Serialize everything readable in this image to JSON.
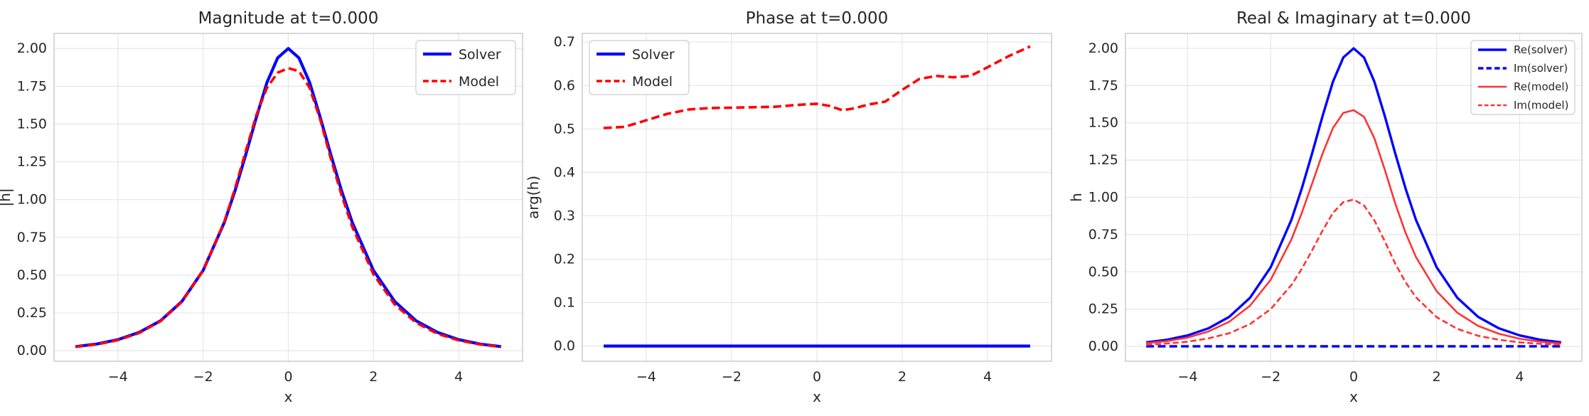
{
  "chart_data": [
    {
      "type": "line",
      "title": "Magnitude at t=0.000",
      "xlabel": "x",
      "ylabel": "|h|",
      "xlim": [
        -5.5,
        5.5
      ],
      "ylim": [
        -0.07,
        2.1
      ],
      "xticks": [
        -4,
        -2,
        0,
        2,
        4
      ],
      "xtick_labels": [
        "−4",
        "−2",
        "0",
        "2",
        "4"
      ],
      "yticks": [
        0,
        0.25,
        0.5,
        0.75,
        1.0,
        1.25,
        1.5,
        1.75,
        2.0
      ],
      "ytick_labels": [
        "0.00",
        "0.25",
        "0.50",
        "0.75",
        "1.00",
        "1.25",
        "1.50",
        "1.75",
        "2.00"
      ],
      "grid": true,
      "legend": "top-right",
      "x": [
        -5,
        -4.5,
        -4,
        -3.5,
        -3,
        -2.5,
        -2,
        -1.5,
        -1.25,
        -1,
        -0.75,
        -0.5,
        -0.25,
        0,
        0.25,
        0.5,
        0.75,
        1,
        1.25,
        1.5,
        2,
        2.5,
        3,
        3.5,
        4,
        4.5,
        5
      ],
      "series": [
        {
          "name": "Solver",
          "color": "#0000ff",
          "style": "solid",
          "width": 4.2,
          "values": [
            0.027,
            0.044,
            0.073,
            0.121,
            0.198,
            0.325,
            0.531,
            0.85,
            1.059,
            1.296,
            1.545,
            1.775,
            1.938,
            2.0,
            1.938,
            1.775,
            1.545,
            1.296,
            1.059,
            0.85,
            0.531,
            0.325,
            0.198,
            0.121,
            0.073,
            0.044,
            0.027
          ]
        },
        {
          "name": "Model",
          "color": "#ff0000",
          "style": "dashed",
          "width": 3.6,
          "values": [
            0.025,
            0.041,
            0.07,
            0.117,
            0.195,
            0.322,
            0.53,
            0.855,
            1.075,
            1.32,
            1.56,
            1.74,
            1.84,
            1.87,
            1.85,
            1.74,
            1.53,
            1.27,
            1.03,
            0.82,
            0.505,
            0.305,
            0.185,
            0.112,
            0.068,
            0.041,
            0.025
          ]
        }
      ]
    },
    {
      "type": "line",
      "title": "Phase at t=0.000",
      "xlabel": "x",
      "ylabel": "arg(h)",
      "xlim": [
        -5.5,
        5.5
      ],
      "ylim": [
        -0.035,
        0.72
      ],
      "xticks": [
        -4,
        -2,
        0,
        2,
        4
      ],
      "xtick_labels": [
        "−4",
        "−2",
        "0",
        "2",
        "4"
      ],
      "yticks": [
        0,
        0.1,
        0.2,
        0.3,
        0.4,
        0.5,
        0.6,
        0.7
      ],
      "ytick_labels": [
        "0.0",
        "0.1",
        "0.2",
        "0.3",
        "0.4",
        "0.5",
        "0.6",
        "0.7"
      ],
      "grid": true,
      "legend": "top-left",
      "x": [
        -5,
        -4.5,
        -4,
        -3.5,
        -3,
        -2.5,
        -2,
        -1.5,
        -1,
        -0.5,
        0,
        0.3,
        0.6,
        0.9,
        1.2,
        1.6,
        2,
        2.4,
        2.8,
        3.2,
        3.6,
        4,
        4.5,
        5
      ],
      "series": [
        {
          "name": "Solver",
          "color": "#0000ff",
          "style": "solid",
          "width": 4.2,
          "values": [
            0,
            0,
            0,
            0,
            0,
            0,
            0,
            0,
            0,
            0,
            0,
            0,
            0,
            0,
            0,
            0,
            0,
            0,
            0,
            0,
            0,
            0,
            0,
            0
          ]
        },
        {
          "name": "Model",
          "color": "#ff0000",
          "style": "dashed",
          "width": 3.6,
          "values": [
            0.502,
            0.505,
            0.52,
            0.535,
            0.545,
            0.548,
            0.549,
            0.55,
            0.551,
            0.555,
            0.558,
            0.553,
            0.543,
            0.548,
            0.556,
            0.563,
            0.59,
            0.615,
            0.622,
            0.619,
            0.622,
            0.642,
            0.668,
            0.69
          ]
        }
      ]
    },
    {
      "type": "line",
      "title": "Real & Imaginary at t=0.000",
      "xlabel": "x",
      "ylabel": "h",
      "xlim": [
        -5.5,
        5.5
      ],
      "ylim": [
        -0.1,
        2.1
      ],
      "xticks": [
        -4,
        -2,
        0,
        2,
        4
      ],
      "xtick_labels": [
        "−4",
        "−2",
        "0",
        "2",
        "4"
      ],
      "yticks": [
        0,
        0.25,
        0.5,
        0.75,
        1.0,
        1.25,
        1.5,
        1.75,
        2.0
      ],
      "ytick_labels": [
        "0.00",
        "0.25",
        "0.50",
        "0.75",
        "1.00",
        "1.25",
        "1.50",
        "1.75",
        "2.00"
      ],
      "grid": true,
      "legend": "top-right",
      "x": [
        -5,
        -4.5,
        -4,
        -3.5,
        -3,
        -2.5,
        -2,
        -1.5,
        -1.25,
        -1,
        -0.75,
        -0.5,
        -0.25,
        0,
        0.25,
        0.5,
        0.75,
        1,
        1.25,
        1.5,
        2,
        2.5,
        3,
        3.5,
        4,
        4.5,
        5
      ],
      "series": [
        {
          "name": "Re(solver)",
          "color": "#0000ff",
          "style": "solid",
          "width": 3.4,
          "values": [
            0.027,
            0.044,
            0.073,
            0.121,
            0.198,
            0.325,
            0.531,
            0.85,
            1.059,
            1.296,
            1.545,
            1.775,
            1.938,
            2.0,
            1.938,
            1.775,
            1.545,
            1.296,
            1.059,
            0.85,
            0.531,
            0.325,
            0.198,
            0.121,
            0.073,
            0.044,
            0.027
          ]
        },
        {
          "name": "Im(solver)",
          "color": "#0000ff",
          "style": "dashed",
          "width": 3.4,
          "values": [
            0,
            0,
            0,
            0,
            0,
            0,
            0,
            0,
            0,
            0,
            0,
            0,
            0,
            0,
            0,
            0,
            0,
            0,
            0,
            0,
            0,
            0,
            0,
            0,
            0,
            0,
            0
          ]
        },
        {
          "name": "Re(model)",
          "color": "#ff3333",
          "style": "solid",
          "width": 2.6,
          "values": [
            0.022,
            0.035,
            0.059,
            0.1,
            0.165,
            0.272,
            0.447,
            0.718,
            0.895,
            1.093,
            1.293,
            1.465,
            1.567,
            1.585,
            1.54,
            1.395,
            1.185,
            0.96,
            0.762,
            0.6,
            0.37,
            0.225,
            0.137,
            0.084,
            0.051,
            0.031,
            0.019
          ]
        },
        {
          "name": "Im(model)",
          "color": "#ff3333",
          "style": "dashed",
          "width": 2.6,
          "values": [
            0.011,
            0.019,
            0.031,
            0.053,
            0.088,
            0.149,
            0.25,
            0.412,
            0.52,
            0.645,
            0.776,
            0.895,
            0.968,
            0.985,
            0.945,
            0.845,
            0.705,
            0.555,
            0.43,
            0.33,
            0.196,
            0.117,
            0.071,
            0.044,
            0.027,
            0.017,
            0.011
          ]
        }
      ]
    }
  ]
}
